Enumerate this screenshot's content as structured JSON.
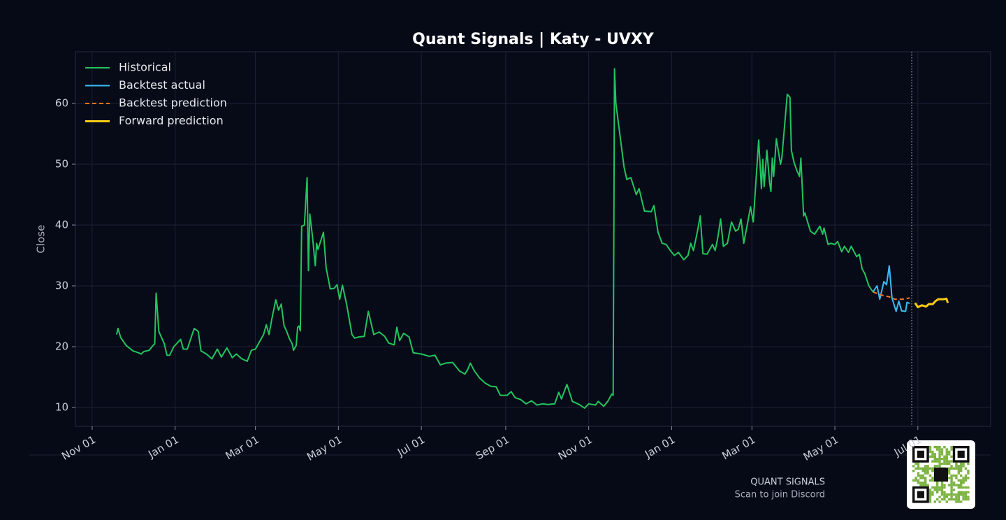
{
  "chart_data": {
    "type": "line",
    "title": "Quant Signals | Katy - UVXY",
    "ylabel": "Close",
    "xlim": [
      -12.3,
      660.5
    ],
    "xticks": [
      {
        "value": 0,
        "label": "Nov 01"
      },
      {
        "value": 61,
        "label": "Jan 01"
      },
      {
        "value": 120,
        "label": "Mar 01"
      },
      {
        "value": 181,
        "label": "May 01"
      },
      {
        "value": 242,
        "label": "Jul 01"
      },
      {
        "value": 304,
        "label": "Sep 01"
      },
      {
        "value": 365,
        "label": "Nov 01"
      },
      {
        "value": 426,
        "label": "Jan 01"
      },
      {
        "value": 485,
        "label": "Mar 01"
      },
      {
        "value": 546,
        "label": "May 01"
      },
      {
        "value": 607,
        "label": "Jul 01"
      }
    ],
    "ylim": [
      6.9,
      68.5
    ],
    "yticks": [
      10,
      20,
      30,
      40,
      50,
      60
    ],
    "grid": true,
    "legend": "upper-left",
    "forecast_start": 602.5,
    "series": [
      {
        "name": "Historical",
        "color": "#22c55e",
        "style": "solid",
        "linewidth": 2,
        "x": [
          18,
          19,
          21,
          25,
          30,
          34,
          36,
          38,
          42,
          44,
          46,
          47,
          49,
          53,
          55,
          57,
          60,
          65,
          67,
          70,
          72,
          75,
          78,
          80,
          84,
          88,
          92,
          95,
          99,
          103,
          106,
          110,
          114,
          117,
          120,
          123,
          126,
          128,
          130,
          132,
          135,
          137,
          139,
          141,
          143,
          145,
          147,
          148,
          150,
          151,
          152,
          153,
          154,
          156,
          158,
          159,
          160,
          162,
          164,
          165,
          166,
          170,
          172,
          175,
          178,
          180,
          182,
          184,
          187,
          191,
          193,
          196,
          200,
          203,
          207,
          211,
          215,
          218,
          222,
          224,
          226,
          229,
          233,
          236,
          242,
          248,
          252,
          256,
          260,
          265,
          270,
          274,
          276,
          278,
          281,
          285,
          289,
          293,
          297,
          300,
          305,
          308,
          311,
          315,
          319,
          323,
          327,
          331,
          335,
          340,
          343,
          345,
          349,
          353,
          358,
          362,
          365,
          370,
          372,
          376,
          379,
          382,
          383,
          384,
          385,
          391,
          393,
          396,
          400,
          402,
          406,
          411,
          413,
          416,
          419,
          422,
          425,
          428,
          431,
          435,
          438,
          440,
          442,
          445,
          447,
          449,
          452,
          456,
          458,
          460,
          462,
          464,
          467,
          470,
          473,
          475,
          477,
          479,
          482,
          484,
          486,
          490,
          492,
          493,
          494,
          496,
          498,
          499,
          500,
          501,
          503,
          506,
          507,
          511,
          513,
          514,
          516,
          518,
          520,
          521,
          523,
          524,
          528,
          531,
          535,
          537,
          538,
          541,
          543,
          546,
          548,
          551,
          553,
          556,
          558,
          562,
          564,
          566,
          568,
          571,
          574
        ],
        "values": [
          22,
          23,
          21.5,
          20.2,
          19.3,
          19,
          18.8,
          19.2,
          19.4,
          20,
          20.5,
          28.8,
          22.5,
          20.5,
          18.6,
          18.6,
          20,
          21.2,
          19.6,
          19.6,
          21,
          23,
          22.5,
          19.3,
          18.8,
          18,
          19.6,
          18.3,
          19.8,
          18.2,
          18.8,
          18,
          17.6,
          19.4,
          19.6,
          20.8,
          22,
          23.6,
          22,
          24.5,
          27.7,
          26,
          27,
          23.5,
          22.5,
          21.3,
          20.5,
          19.4,
          20.2,
          23.2,
          23.4,
          22.6,
          39.8,
          40,
          47.8,
          32.5,
          41.8,
          38,
          33.3,
          37,
          36,
          38.8,
          33,
          29.5,
          29.6,
          30.2,
          27.8,
          30.1,
          27,
          22,
          21.4,
          21.6,
          21.7,
          25.8,
          22,
          22.4,
          21.7,
          20.6,
          20.3,
          23.2,
          21,
          22.2,
          21.6,
          19,
          18.8,
          18.4,
          18.6,
          17,
          17.3,
          17.4,
          16,
          15.5,
          16.2,
          17.3,
          16,
          14.8,
          14,
          13.5,
          13.4,
          12,
          12,
          12.6,
          11.6,
          11.3,
          10.6,
          11.1,
          10.4,
          10.6,
          10.5,
          10.6,
          12.5,
          11.4,
          13.8,
          11,
          10.5,
          9.9,
          10.6,
          10.4,
          11,
          10.2,
          11,
          12.2,
          12,
          65.7,
          60,
          49.5,
          47.5,
          47.8,
          45,
          46,
          42.3,
          42.2,
          43.2,
          38.8,
          37,
          36.8,
          35.8,
          35,
          35.5,
          34.3,
          35,
          37,
          35.8,
          39,
          41.5,
          35.3,
          35.2,
          36.8,
          35.8,
          38,
          41,
          36.5,
          37,
          40.5,
          39,
          39.3,
          41,
          37,
          40.5,
          43,
          40.5,
          54,
          46,
          50.8,
          46.3,
          52.3,
          47,
          45.5,
          51,
          48,
          54.2,
          50,
          51,
          61.5,
          61,
          52.3,
          50.3,
          49,
          48,
          51,
          41.5,
          42,
          39,
          38.5,
          39.8,
          38.5,
          39.5,
          36.8,
          37,
          36.8,
          37.3,
          35.6,
          36.5,
          35.5,
          36.5,
          34.8,
          35.2,
          32.8,
          32,
          30,
          29
        ]
      },
      {
        "name": "Backtest actual",
        "color": "#38bdf8",
        "style": "solid",
        "linewidth": 2,
        "x": [
          574,
          577,
          579,
          582,
          584,
          586,
          588,
          591,
          593,
          595,
          598,
          599,
          601
        ],
        "values": [
          29,
          30,
          27.8,
          30.7,
          30.2,
          33.3,
          28,
          25.8,
          27.5,
          25.9,
          25.8,
          27.3,
          27.1
        ]
      },
      {
        "name": "Backtest prediction",
        "color": "#f97316",
        "style": "dashed",
        "linewidth": 2,
        "x": [
          574,
          580,
          586,
          590,
          596,
          601
        ],
        "values": [
          29,
          28.5,
          28.2,
          27.8,
          27.8,
          28
        ]
      },
      {
        "name": "Forward prediction",
        "color": "#facc15",
        "style": "solid",
        "linewidth": 3,
        "x": [
          605,
          607,
          610,
          613,
          615,
          618,
          620,
          622,
          626,
          628,
          629
        ],
        "values": [
          27.2,
          26.5,
          26.8,
          26.6,
          27,
          27,
          27.5,
          27.8,
          27.8,
          27.9,
          27.2
        ]
      }
    ]
  },
  "footer": {
    "brand": "QUANT SIGNALS",
    "caption": "Scan to join Discord"
  }
}
